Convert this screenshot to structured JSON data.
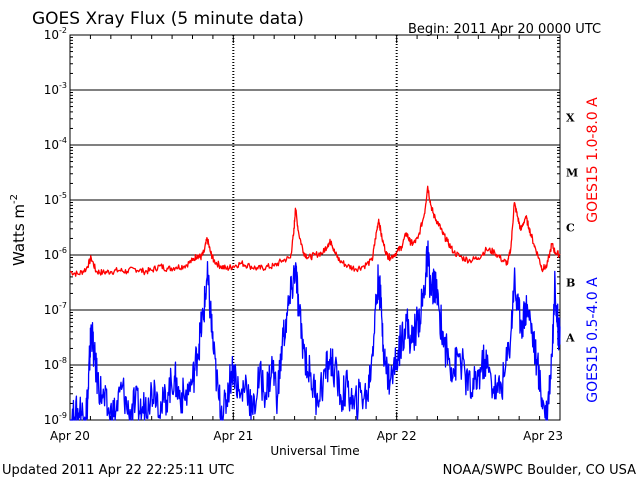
{
  "chart_data": {
    "type": "line",
    "title": "GOES Xray Flux (5 minute data)",
    "begin_label": "Begin:  2011 Apr 20 0000 UTC",
    "xlabel": "Universal Time",
    "ylabel_base": "Watts m",
    "ylabel_exp": "-2",
    "y_scale": "log",
    "ylim": [
      1e-09,
      0.01
    ],
    "xlim_days": [
      0,
      3
    ],
    "x_ticks": [
      {
        "day": 0,
        "label": "Apr 20"
      },
      {
        "day": 1,
        "label": "Apr 21"
      },
      {
        "day": 2,
        "label": "Apr 22"
      },
      {
        "day": 3,
        "label": "Apr 23"
      }
    ],
    "y_ticks": [
      {
        "exp": -9,
        "label": "10",
        "sup": "-9"
      },
      {
        "exp": -8,
        "label": "10",
        "sup": "-8"
      },
      {
        "exp": -7,
        "label": "10",
        "sup": "-7"
      },
      {
        "exp": -6,
        "label": "10",
        "sup": "-6"
      },
      {
        "exp": -5,
        "label": "10",
        "sup": "-5"
      },
      {
        "exp": -4,
        "label": "10",
        "sup": "-4"
      },
      {
        "exp": -3,
        "label": "10",
        "sup": "-3"
      },
      {
        "exp": -2,
        "label": "10",
        "sup": "-2"
      }
    ],
    "flare_classes": [
      {
        "label": "X",
        "exp": -3.5
      },
      {
        "label": "M",
        "exp": -4.5
      },
      {
        "label": "C",
        "exp": -5.5
      },
      {
        "label": "B",
        "exp": -6.5
      },
      {
        "label": "A",
        "exp": -7.5
      }
    ],
    "grid": true,
    "series": [
      {
        "name": "GOES15 1.0-8.0 A",
        "color": "#ff0000",
        "points": [
          [
            0.0,
            -6.3
          ],
          [
            0.05,
            -6.35
          ],
          [
            0.1,
            -6.25
          ],
          [
            0.13,
            -6.05
          ],
          [
            0.16,
            -6.3
          ],
          [
            0.2,
            -6.32
          ],
          [
            0.25,
            -6.3
          ],
          [
            0.3,
            -6.28
          ],
          [
            0.35,
            -6.3
          ],
          [
            0.4,
            -6.25
          ],
          [
            0.45,
            -6.3
          ],
          [
            0.5,
            -6.28
          ],
          [
            0.55,
            -6.2
          ],
          [
            0.6,
            -6.25
          ],
          [
            0.65,
            -6.22
          ],
          [
            0.7,
            -6.2
          ],
          [
            0.75,
            -6.1
          ],
          [
            0.78,
            -6.0
          ],
          [
            0.8,
            -6.05
          ],
          [
            0.82,
            -5.95
          ],
          [
            0.84,
            -5.7
          ],
          [
            0.86,
            -5.95
          ],
          [
            0.88,
            -6.1
          ],
          [
            0.92,
            -6.2
          ],
          [
            0.96,
            -6.25
          ],
          [
            1.0,
            -6.2
          ],
          [
            1.05,
            -6.15
          ],
          [
            1.1,
            -6.2
          ],
          [
            1.15,
            -6.25
          ],
          [
            1.2,
            -6.22
          ],
          [
            1.25,
            -6.2
          ],
          [
            1.3,
            -6.1
          ],
          [
            1.35,
            -6.05
          ],
          [
            1.37,
            -5.6
          ],
          [
            1.38,
            -5.15
          ],
          [
            1.4,
            -5.6
          ],
          [
            1.43,
            -5.95
          ],
          [
            1.46,
            -6.05
          ],
          [
            1.5,
            -6.0
          ],
          [
            1.55,
            -5.95
          ],
          [
            1.58,
            -5.8
          ],
          [
            1.6,
            -5.75
          ],
          [
            1.62,
            -5.95
          ],
          [
            1.65,
            -6.1
          ],
          [
            1.7,
            -6.2
          ],
          [
            1.75,
            -6.25
          ],
          [
            1.8,
            -6.2
          ],
          [
            1.85,
            -6.1
          ],
          [
            1.87,
            -5.7
          ],
          [
            1.89,
            -5.35
          ],
          [
            1.91,
            -5.7
          ],
          [
            1.94,
            -6.0
          ],
          [
            1.96,
            -6.05
          ],
          [
            2.0,
            -5.95
          ],
          [
            2.03,
            -5.85
          ],
          [
            2.06,
            -5.6
          ],
          [
            2.08,
            -5.75
          ],
          [
            2.1,
            -5.8
          ],
          [
            2.13,
            -5.7
          ],
          [
            2.17,
            -5.25
          ],
          [
            2.19,
            -4.75
          ],
          [
            2.21,
            -5.1
          ],
          [
            2.23,
            -5.3
          ],
          [
            2.26,
            -5.45
          ],
          [
            2.28,
            -5.6
          ],
          [
            2.31,
            -5.75
          ],
          [
            2.35,
            -5.95
          ],
          [
            2.4,
            -6.05
          ],
          [
            2.45,
            -6.1
          ],
          [
            2.5,
            -6.05
          ],
          [
            2.55,
            -5.9
          ],
          [
            2.6,
            -5.95
          ],
          [
            2.65,
            -6.1
          ],
          [
            2.68,
            -6.15
          ],
          [
            2.7,
            -5.85
          ],
          [
            2.72,
            -5.05
          ],
          [
            2.74,
            -5.3
          ],
          [
            2.76,
            -5.55
          ],
          [
            2.79,
            -5.3
          ],
          [
            2.81,
            -5.5
          ],
          [
            2.84,
            -5.8
          ],
          [
            2.87,
            -6.05
          ],
          [
            2.89,
            -6.25
          ],
          [
            2.92,
            -6.2
          ],
          [
            2.95,
            -5.8
          ],
          [
            2.97,
            -5.95
          ],
          [
            3.0,
            -6.0
          ]
        ]
      },
      {
        "name": "GOES15 0.5-4.0 A",
        "color": "#0000ff",
        "points": [
          [
            0.0,
            -9.0
          ],
          [
            0.03,
            -8.95
          ],
          [
            0.06,
            -8.8
          ],
          [
            0.09,
            -8.95
          ],
          [
            0.11,
            -8.6
          ],
          [
            0.12,
            -7.9
          ],
          [
            0.13,
            -7.3
          ],
          [
            0.15,
            -7.9
          ],
          [
            0.17,
            -8.3
          ],
          [
            0.2,
            -8.6
          ],
          [
            0.24,
            -8.9
          ],
          [
            0.28,
            -8.85
          ],
          [
            0.32,
            -8.4
          ],
          [
            0.36,
            -8.9
          ],
          [
            0.4,
            -8.7
          ],
          [
            0.44,
            -8.85
          ],
          [
            0.48,
            -8.6
          ],
          [
            0.52,
            -8.4
          ],
          [
            0.56,
            -8.8
          ],
          [
            0.6,
            -8.5
          ],
          [
            0.64,
            -8.2
          ],
          [
            0.66,
            -8.5
          ],
          [
            0.7,
            -8.6
          ],
          [
            0.75,
            -8.3
          ],
          [
            0.78,
            -7.8
          ],
          [
            0.8,
            -7.4
          ],
          [
            0.82,
            -7.0
          ],
          [
            0.84,
            -6.4
          ],
          [
            0.86,
            -7.0
          ],
          [
            0.88,
            -7.8
          ],
          [
            0.91,
            -8.6
          ],
          [
            0.94,
            -8.9
          ],
          [
            0.97,
            -8.4
          ],
          [
            1.0,
            -8.0
          ],
          [
            1.04,
            -8.6
          ],
          [
            1.08,
            -8.3
          ],
          [
            1.12,
            -8.9
          ],
          [
            1.16,
            -8.2
          ],
          [
            1.2,
            -8.5
          ],
          [
            1.24,
            -8.0
          ],
          [
            1.27,
            -8.6
          ],
          [
            1.3,
            -7.6
          ],
          [
            1.33,
            -7.1
          ],
          [
            1.36,
            -6.6
          ],
          [
            1.38,
            -6.2
          ],
          [
            1.4,
            -7.0
          ],
          [
            1.43,
            -7.7
          ],
          [
            1.47,
            -8.2
          ],
          [
            1.51,
            -8.6
          ],
          [
            1.55,
            -8.3
          ],
          [
            1.59,
            -7.9
          ],
          [
            1.62,
            -8.1
          ],
          [
            1.66,
            -8.6
          ],
          [
            1.7,
            -8.4
          ],
          [
            1.74,
            -8.8
          ],
          [
            1.78,
            -8.5
          ],
          [
            1.82,
            -8.6
          ],
          [
            1.85,
            -7.8
          ],
          [
            1.87,
            -7.0
          ],
          [
            1.89,
            -6.4
          ],
          [
            1.91,
            -7.2
          ],
          [
            1.93,
            -8.0
          ],
          [
            1.96,
            -8.3
          ],
          [
            2.0,
            -7.9
          ],
          [
            2.03,
            -7.5
          ],
          [
            2.06,
            -7.2
          ],
          [
            2.09,
            -7.6
          ],
          [
            2.12,
            -7.3
          ],
          [
            2.15,
            -7.0
          ],
          [
            2.17,
            -6.6
          ],
          [
            2.19,
            -6.0
          ],
          [
            2.21,
            -6.7
          ],
          [
            2.23,
            -6.5
          ],
          [
            2.26,
            -7.0
          ],
          [
            2.29,
            -7.6
          ],
          [
            2.32,
            -7.9
          ],
          [
            2.35,
            -8.1
          ],
          [
            2.38,
            -7.8
          ],
          [
            2.42,
            -8.2
          ],
          [
            2.46,
            -8.5
          ],
          [
            2.5,
            -8.2
          ],
          [
            2.54,
            -7.9
          ],
          [
            2.58,
            -8.3
          ],
          [
            2.62,
            -8.5
          ],
          [
            2.66,
            -8.2
          ],
          [
            2.7,
            -7.4
          ],
          [
            2.72,
            -6.4
          ],
          [
            2.74,
            -7.0
          ],
          [
            2.77,
            -7.2
          ],
          [
            2.8,
            -6.9
          ],
          [
            2.83,
            -7.4
          ],
          [
            2.86,
            -8.0
          ],
          [
            2.89,
            -8.6
          ],
          [
            2.92,
            -8.9
          ],
          [
            2.95,
            -7.8
          ],
          [
            2.97,
            -6.5
          ],
          [
            2.99,
            -7.4
          ],
          [
            3.0,
            -7.3
          ]
        ]
      }
    ]
  },
  "footer": {
    "updated": "Updated 2011 Apr 22 22:25:11 UTC",
    "credit": "NOAA/SWPC Boulder, CO USA"
  }
}
